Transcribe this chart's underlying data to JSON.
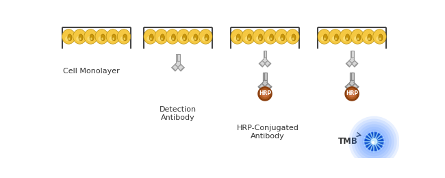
{
  "background_color": "#ffffff",
  "fig_width": 6.5,
  "fig_height": 2.6,
  "labels": {
    "cell_monolayer": "Cell Monolayer",
    "detection_antibody": "Detection\nAntibody",
    "hrp_conjugated": "HRP-Conjugated\nAntibody",
    "tmb": "TMB",
    "hrp": "HRP"
  },
  "label_fontsize": 8.0,
  "cell_color_outer": "#f5c842",
  "cell_color_inner": "#c8960a",
  "cell_color_light": "#fde98a",
  "antibody_body_color": "#d0d0d0",
  "antibody_outline_color": "#888888",
  "hrp_color": "#8B4010",
  "hrp_color2": "#b05a20",
  "tray_color": "#444444",
  "tmb_blue": "#2277ff",
  "tmb_light": "#88ccff",
  "tmb_white": "#ddeeff"
}
